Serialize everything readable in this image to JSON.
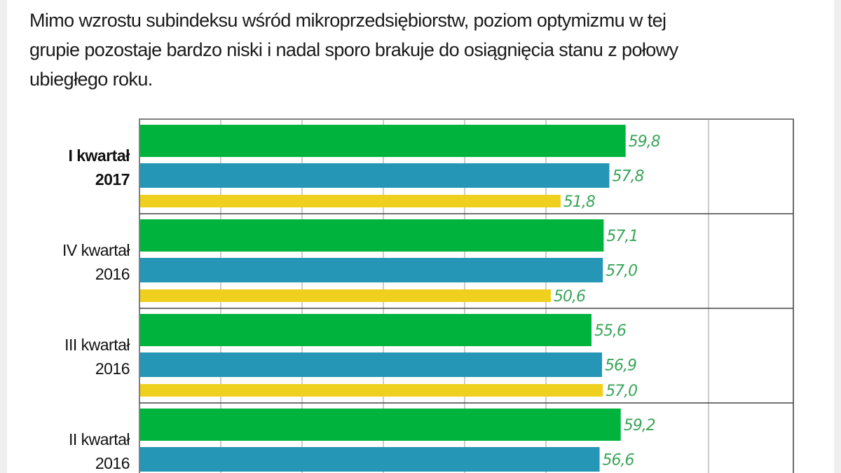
{
  "title_lines": [
    "Mimo wzrostu subindeksu wśród mikroprzedsiębiorstw, poziom optymizmu w tej",
    "grupie pozostaje bardzo niski i nadal sporo brakuje do osiągnięcia stanu z połowy",
    "ubiegłego roku."
  ],
  "chart_data": {
    "type": "bar",
    "orientation": "horizontal",
    "title": "",
    "xlabel": "",
    "ylabel": "",
    "xlim": [
      0,
      80
    ],
    "grid": true,
    "categories": [
      {
        "line1": "I kwartał",
        "line2": "2017",
        "bold": true
      },
      {
        "line1": "IV kwartał",
        "line2": "2016",
        "bold": false
      },
      {
        "line1": "III kwartał",
        "line2": "2016",
        "bold": false
      },
      {
        "line1": "II kwartał",
        "line2": "2016",
        "bold": false
      }
    ],
    "series": [
      {
        "color": "#00b33c",
        "values": [
          59.8,
          57.1,
          55.6,
          59.2
        ],
        "labels": [
          "59,8",
          "57,1",
          "55,6",
          "59,2"
        ]
      },
      {
        "color": "#2596b5",
        "values": [
          57.8,
          57.0,
          56.9,
          56.6
        ],
        "labels": [
          "57,8",
          "57,0",
          "56,9",
          "56,6"
        ]
      },
      {
        "color": "#f0d01e",
        "values": [
          51.8,
          50.6,
          57.0,
          null
        ],
        "labels": [
          "51,8",
          "50,6",
          "57,0",
          null
        ]
      }
    ],
    "label_color": "#3aa55a"
  }
}
